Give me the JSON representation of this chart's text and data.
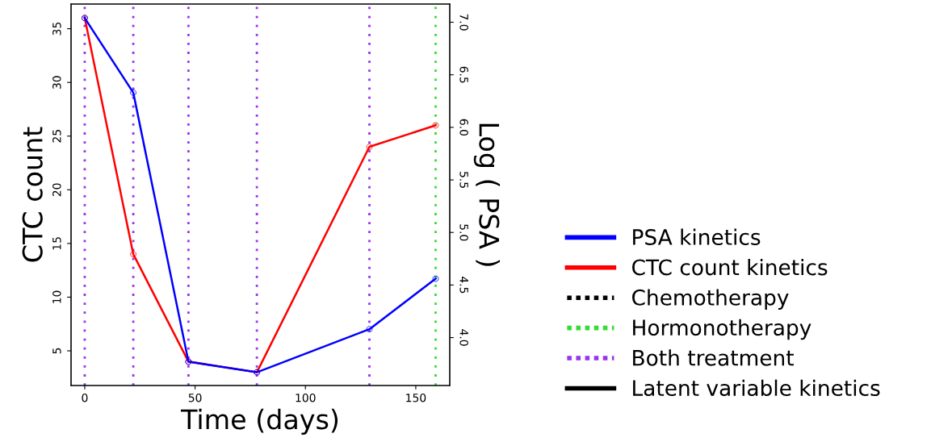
{
  "chart_data": {
    "type": "line",
    "xlabel": "Time (days)",
    "ylabel": "CTC count",
    "y2label": "Log ( PSA )",
    "x": [
      0,
      22,
      47,
      78,
      129,
      159
    ],
    "series": [
      {
        "name": "PSA kinetics",
        "color": "#0000ff",
        "axis": "y2",
        "values": [
          7.04,
          6.33,
          3.77,
          3.67,
          4.08,
          4.56
        ]
      },
      {
        "name": "CTC count kinetics",
        "color": "#ff0000",
        "values": [
          36,
          14,
          4,
          3,
          24,
          26
        ]
      },
      {
        "name": "Chemotherapy",
        "color": "#000000",
        "line_style": "dotted",
        "values": [
          null,
          null,
          null,
          null,
          null,
          null
        ]
      },
      {
        "name": "Hormonotherapy",
        "color": "#33dd33",
        "line_style": "dotted",
        "values": [
          null,
          null,
          null,
          null,
          null,
          null
        ]
      },
      {
        "name": "Both treatment",
        "color": "#9933ee",
        "line_style": "dotted",
        "values": [
          null,
          null,
          null,
          null,
          null,
          null
        ]
      },
      {
        "name": "Latent variable kinetics",
        "color": "#000000",
        "values": [
          null,
          null,
          null,
          null,
          null,
          null
        ]
      }
    ],
    "ref_lines": [
      {
        "axis": "x",
        "value": 0,
        "color": "#9933ee",
        "line_style": "dotted"
      },
      {
        "axis": "x",
        "value": 22,
        "color": "#9933ee",
        "line_style": "dotted"
      },
      {
        "axis": "x",
        "value": 47,
        "color": "#9933ee",
        "line_style": "dotted"
      },
      {
        "axis": "x",
        "value": 78,
        "color": "#9933ee",
        "line_style": "dotted"
      },
      {
        "axis": "x",
        "value": 129,
        "color": "#9933ee",
        "line_style": "dotted"
      },
      {
        "axis": "x",
        "value": 159,
        "color": "#33dd33",
        "line_style": "dotted"
      }
    ],
    "marker": "circle",
    "line_style": "solid",
    "grid": false,
    "legend": "right",
    "xlim": [
      -6.2,
      165.4
    ],
    "xticks": [
      0,
      50,
      100,
      150
    ],
    "ylim": [
      1.77,
      37.3
    ],
    "yticks": [
      5,
      10,
      15,
      20,
      25,
      30,
      35
    ],
    "y2lim": [
      3.544,
      7.173
    ],
    "y2ticks": [
      {
        "value": 4,
        "label": "4.0"
      },
      {
        "value": 4.5,
        "label": "4.5"
      },
      {
        "value": 5,
        "label": "5.0"
      },
      {
        "value": 5.5,
        "label": "5.5"
      },
      {
        "value": 6,
        "label": "6.0"
      },
      {
        "value": 6.5,
        "label": "6.5"
      },
      {
        "value": 7,
        "label": "7.0"
      }
    ]
  }
}
